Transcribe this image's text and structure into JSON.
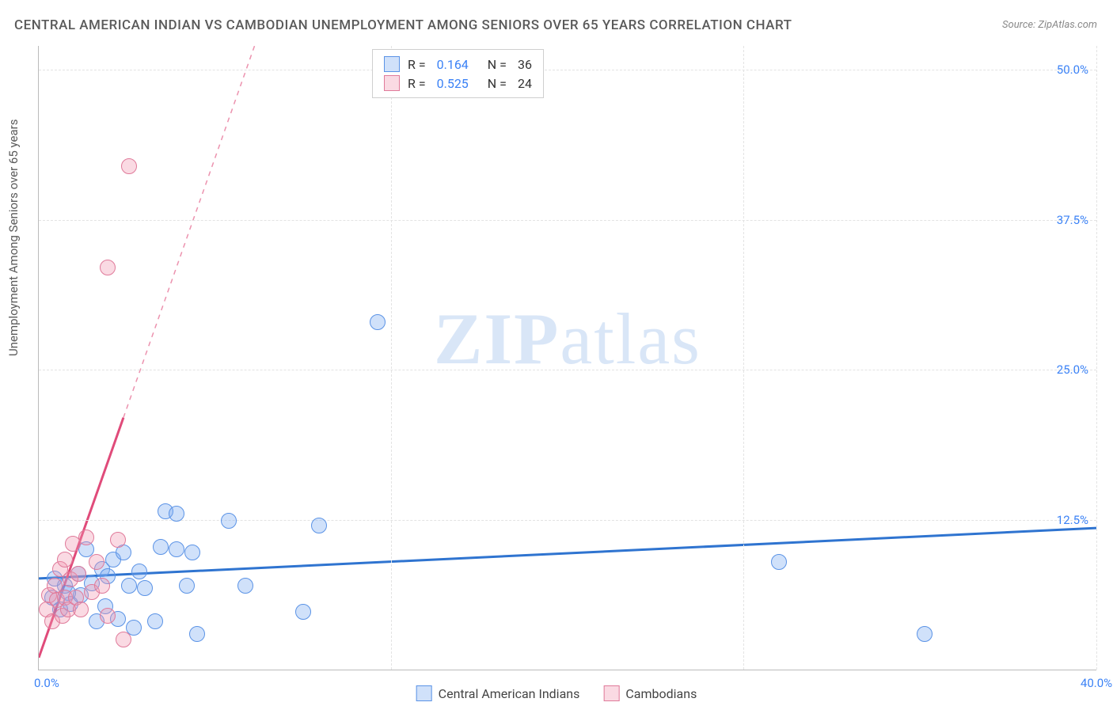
{
  "title": "CENTRAL AMERICAN INDIAN VS CAMBODIAN UNEMPLOYMENT AMONG SENIORS OVER 65 YEARS CORRELATION CHART",
  "source_label": "Source: ZipAtlas.com",
  "ylabel": "Unemployment Among Seniors over 65 years",
  "watermark_a": "ZIP",
  "watermark_b": "atlas",
  "chart": {
    "type": "scatter",
    "background_color": "#ffffff",
    "grid_color": "#e3e3e3",
    "axis_color": "#bbbbbb",
    "xlim": [
      0,
      40
    ],
    "ylim": [
      0,
      52
    ],
    "x_ticks": [
      0,
      40
    ],
    "x_tick_labels": [
      "0.0%",
      "40.0%"
    ],
    "x_grid_positions": [
      13.33,
      26.66,
      40
    ],
    "y_ticks": [
      12.5,
      25.0,
      37.5,
      50.0
    ],
    "y_tick_labels": [
      "12.5%",
      "25.0%",
      "37.5%",
      "50.0%"
    ],
    "marker_radius": 10,
    "marker_border_width": 1.5,
    "regression_line_width": 3
  },
  "series": [
    {
      "key": "cai",
      "label": "Central American Indians",
      "fill": "rgba(120,170,240,0.35)",
      "stroke": "#5b93e6",
      "line_stroke": "#2f74d0",
      "R": "0.164",
      "N": "36",
      "points": [
        [
          0.5,
          6.0
        ],
        [
          0.8,
          5.0
        ],
        [
          1.0,
          7.0
        ],
        [
          1.2,
          5.5
        ],
        [
          1.5,
          8.0
        ],
        [
          1.6,
          6.2
        ],
        [
          1.8,
          10.0
        ],
        [
          2.0,
          7.2
        ],
        [
          2.2,
          4.0
        ],
        [
          2.4,
          8.4
        ],
        [
          2.5,
          5.3
        ],
        [
          2.6,
          7.8
        ],
        [
          2.8,
          9.2
        ],
        [
          3.0,
          4.2
        ],
        [
          3.2,
          9.8
        ],
        [
          3.4,
          7.0
        ],
        [
          3.6,
          3.5
        ],
        [
          3.8,
          8.2
        ],
        [
          4.0,
          6.8
        ],
        [
          4.4,
          4.0
        ],
        [
          4.6,
          10.2
        ],
        [
          4.8,
          13.2
        ],
        [
          5.2,
          10.0
        ],
        [
          5.2,
          13.0
        ],
        [
          5.6,
          7.0
        ],
        [
          5.8,
          9.8
        ],
        [
          6.0,
          3.0
        ],
        [
          7.2,
          12.4
        ],
        [
          7.8,
          7.0
        ],
        [
          10.0,
          4.8
        ],
        [
          10.6,
          12.0
        ],
        [
          12.8,
          29.0
        ],
        [
          28.0,
          9.0
        ],
        [
          33.5,
          3.0
        ],
        [
          0.6,
          7.6
        ],
        [
          1.1,
          6.4
        ]
      ],
      "regression": {
        "y_at_x0": 7.6,
        "y_at_xmax": 11.8
      }
    },
    {
      "key": "cam",
      "label": "Cambodians",
      "fill": "rgba(240,150,175,0.35)",
      "stroke": "#e07a9a",
      "line_stroke": "#e04b7a",
      "R": "0.525",
      "N": "24",
      "points": [
        [
          0.3,
          5.0
        ],
        [
          0.4,
          6.2
        ],
        [
          0.5,
          4.0
        ],
        [
          0.6,
          7.0
        ],
        [
          0.7,
          5.8
        ],
        [
          0.8,
          8.4
        ],
        [
          0.9,
          4.5
        ],
        [
          1.0,
          6.0
        ],
        [
          1.0,
          9.2
        ],
        [
          1.1,
          5.0
        ],
        [
          1.2,
          7.5
        ],
        [
          1.3,
          10.5
        ],
        [
          1.4,
          6.0
        ],
        [
          1.5,
          8.0
        ],
        [
          1.6,
          5.0
        ],
        [
          1.8,
          11.0
        ],
        [
          2.0,
          6.5
        ],
        [
          2.2,
          9.0
        ],
        [
          2.4,
          7.0
        ],
        [
          2.6,
          4.5
        ],
        [
          3.0,
          10.8
        ],
        [
          3.2,
          2.5
        ],
        [
          2.6,
          33.5
        ],
        [
          3.4,
          42.0
        ]
      ],
      "regression": {
        "y_at_x0": 1.0,
        "y_at_x_end": 21.0,
        "x_end": 3.2,
        "dash_to_y": 52
      }
    }
  ],
  "legend_top": {
    "r_label": "R  =",
    "n_label": "N  ="
  },
  "legend_bottom_labels": [
    "Central American Indians",
    "Cambodians"
  ]
}
